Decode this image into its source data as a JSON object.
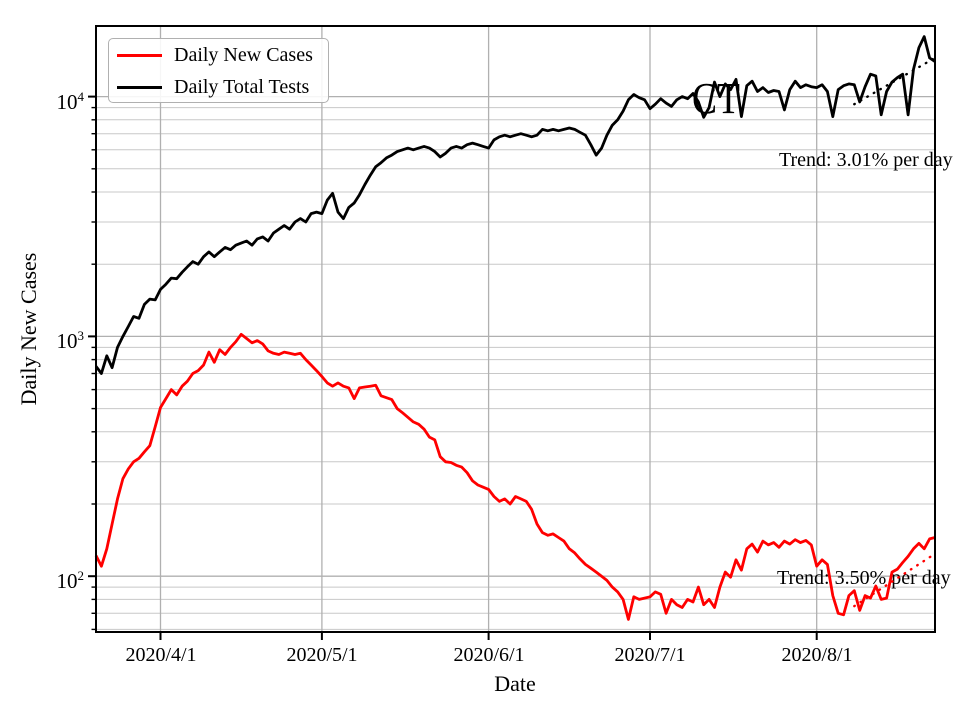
{
  "title_watermark": "CT",
  "axes": {
    "xlabel": "Date",
    "ylabel": "Daily New Cases",
    "y_ticks": [
      {
        "base": "10",
        "exp": "2"
      },
      {
        "base": "10",
        "exp": "3"
      },
      {
        "base": "10",
        "exp": "4"
      }
    ]
  },
  "legend": {
    "position": "upper left",
    "items": [
      {
        "label": "Daily New Cases",
        "color": "#ff0000"
      },
      {
        "label": "Daily Total Tests",
        "color": "#000000"
      }
    ]
  },
  "annotations": {
    "tests_trend": "Trend: 3.01% per day",
    "cases_trend": "Trend: 3.50% per day"
  },
  "colors": {
    "cases_line": "#ff0000",
    "tests_line": "#000000",
    "major_grid": "#b0b0b0",
    "minor_grid": "#c8c8c8",
    "frame": "#000000",
    "background": "#ffffff"
  },
  "chart_data": {
    "type": "line",
    "y_scale": "log",
    "grid": true,
    "xlim": [
      "3/20",
      "8/23"
    ],
    "ylim": [
      58.5,
      19700
    ],
    "x_tick_dates": [
      "4/1",
      "5/1",
      "6/1",
      "7/1",
      "8/1"
    ],
    "x_tick_labels": [
      "2020/4/1",
      "2020/5/1",
      "2020/6/1",
      "2020/7/1",
      "2020/8/1"
    ],
    "x_dates": [
      "3/20",
      "3/21",
      "3/22",
      "3/23",
      "3/24",
      "3/25",
      "3/26",
      "3/27",
      "3/28",
      "3/29",
      "3/30",
      "3/31",
      "4/1",
      "4/2",
      "4/3",
      "4/4",
      "4/5",
      "4/6",
      "4/7",
      "4/8",
      "4/9",
      "4/10",
      "4/11",
      "4/12",
      "4/13",
      "4/14",
      "4/15",
      "4/16",
      "4/17",
      "4/18",
      "4/19",
      "4/20",
      "4/21",
      "4/22",
      "4/23",
      "4/24",
      "4/25",
      "4/26",
      "4/27",
      "4/28",
      "4/29",
      "4/30",
      "5/1",
      "5/2",
      "5/3",
      "5/4",
      "5/5",
      "5/6",
      "5/7",
      "5/8",
      "5/9",
      "5/10",
      "5/11",
      "5/12",
      "5/13",
      "5/14",
      "5/15",
      "5/16",
      "5/17",
      "5/18",
      "5/19",
      "5/20",
      "5/21",
      "5/22",
      "5/23",
      "5/24",
      "5/25",
      "5/26",
      "5/27",
      "5/28",
      "5/29",
      "5/30",
      "5/31",
      "6/1",
      "6/2",
      "6/3",
      "6/4",
      "6/5",
      "6/6",
      "6/7",
      "6/8",
      "6/9",
      "6/10",
      "6/11",
      "6/12",
      "6/13",
      "6/14",
      "6/15",
      "6/16",
      "6/17",
      "6/18",
      "6/19",
      "6/20",
      "6/21",
      "6/22",
      "6/23",
      "6/24",
      "6/25",
      "6/26",
      "6/27",
      "6/28",
      "6/29",
      "6/30",
      "7/1",
      "7/2",
      "7/3",
      "7/4",
      "7/5",
      "7/6",
      "7/7",
      "7/8",
      "7/9",
      "7/10",
      "7/11",
      "7/12",
      "7/13",
      "7/14",
      "7/15",
      "7/16",
      "7/17",
      "7/18",
      "7/19",
      "7/20",
      "7/21",
      "7/22",
      "7/23",
      "7/24",
      "7/25",
      "7/26",
      "7/27",
      "7/28",
      "7/29",
      "7/30",
      "7/31",
      "8/1",
      "8/2",
      "8/3",
      "8/4",
      "8/5",
      "8/6",
      "8/7",
      "8/8",
      "8/9",
      "8/10",
      "8/11",
      "8/12",
      "8/13",
      "8/14",
      "8/15",
      "8/16",
      "8/17",
      "8/18",
      "8/19",
      "8/20",
      "8/21",
      "8/22",
      "8/23"
    ],
    "series": [
      {
        "name": "Daily New Cases",
        "color": "#ff0000",
        "values": [
          122,
          110,
          130,
          165,
          210,
          255,
          280,
          300,
          310,
          330,
          350,
          420,
          505,
          550,
          600,
          570,
          620,
          650,
          700,
          720,
          760,
          860,
          780,
          880,
          840,
          900,
          950,
          1020,
          980,
          940,
          960,
          930,
          870,
          850,
          840,
          860,
          850,
          840,
          850,
          800,
          760,
          720,
          680,
          640,
          620,
          640,
          620,
          610,
          550,
          610,
          615,
          620,
          625,
          565,
          555,
          545,
          500,
          480,
          460,
          440,
          430,
          410,
          380,
          370,
          315,
          300,
          298,
          290,
          285,
          270,
          250,
          240,
          235,
          230,
          215,
          205,
          210,
          200,
          215,
          210,
          205,
          190,
          165,
          152,
          148,
          150,
          145,
          140,
          130,
          125,
          118,
          112,
          108,
          104,
          100,
          96,
          90,
          86,
          80,
          66,
          82,
          80,
          81,
          82,
          86,
          84,
          70,
          80,
          76,
          74,
          80,
          78,
          90,
          76,
          80,
          74,
          90,
          104,
          99,
          117,
          106,
          130,
          136,
          126,
          140,
          135,
          138,
          132,
          140,
          136,
          142,
          138,
          141,
          135,
          110,
          117,
          112,
          83,
          70,
          69,
          83,
          87,
          72,
          83,
          81,
          91,
          80,
          81,
          104,
          107,
          114,
          121,
          130,
          137,
          130,
          143,
          145
        ]
      },
      {
        "name": "Daily Total Tests",
        "color": "#000000",
        "values": [
          750,
          700,
          830,
          740,
          900,
          1000,
          1100,
          1210,
          1190,
          1360,
          1430,
          1420,
          1570,
          1650,
          1750,
          1740,
          1850,
          1950,
          2050,
          2000,
          2150,
          2250,
          2150,
          2250,
          2350,
          2300,
          2400,
          2450,
          2500,
          2400,
          2550,
          2600,
          2500,
          2700,
          2800,
          2900,
          2800,
          3000,
          3100,
          3000,
          3250,
          3300,
          3250,
          3700,
          3950,
          3300,
          3100,
          3450,
          3600,
          3900,
          4300,
          4700,
          5100,
          5300,
          5550,
          5700,
          5900,
          6000,
          6100,
          6000,
          6100,
          6200,
          6100,
          5900,
          5600,
          5800,
          6100,
          6200,
          6100,
          6300,
          6400,
          6300,
          6200,
          6100,
          6600,
          6800,
          6900,
          6800,
          6900,
          7000,
          6900,
          6800,
          6900,
          7300,
          7200,
          7300,
          7200,
          7300,
          7400,
          7300,
          7100,
          6900,
          6300,
          5700,
          6100,
          6900,
          7600,
          8000,
          8700,
          9700,
          10200,
          9900,
          9700,
          8900,
          9300,
          9800,
          9400,
          9100,
          9700,
          10000,
          9800,
          10300,
          9500,
          8200,
          9000,
          11500,
          10000,
          11300,
          10700,
          11800,
          8250,
          11100,
          11600,
          10500,
          10900,
          10400,
          10600,
          10500,
          8800,
          10700,
          11600,
          10900,
          11200,
          11000,
          10900,
          11200,
          10500,
          8250,
          10700,
          11100,
          11300,
          11200,
          9500,
          11000,
          12400,
          12200,
          8400,
          10500,
          11500,
          12000,
          12400,
          8400,
          13000,
          16000,
          17800,
          14500,
          14000
        ]
      }
    ],
    "trend_fits": [
      {
        "series": "Daily Total Tests",
        "label": "Trend: 3.01% per day",
        "rate_pct_per_day": 3.01,
        "style": "dotted",
        "color": "#000000",
        "x": [
          "8/8",
          "8/23"
        ],
        "values": [
          9300,
          14500
        ]
      },
      {
        "series": "Daily New Cases",
        "label": "Trend: 3.50% per day",
        "rate_pct_per_day": 3.5,
        "style": "dotted",
        "color": "#ff0000",
        "x": [
          "8/8",
          "8/23"
        ],
        "values": [
          75,
          124
        ]
      }
    ]
  }
}
